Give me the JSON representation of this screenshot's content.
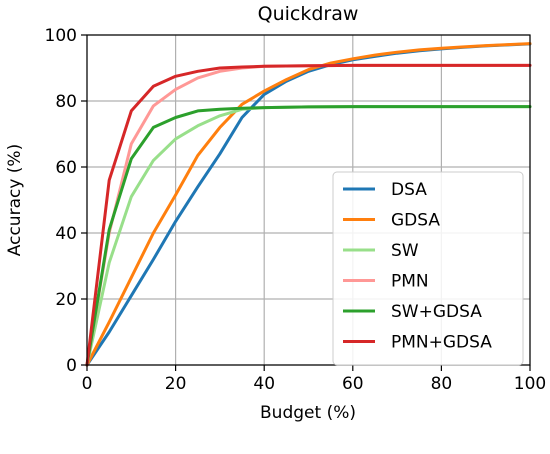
{
  "chart_data": {
    "type": "line",
    "title": "Quickdraw",
    "xlabel": "Budget (%)",
    "ylabel": "Accuracy (%)",
    "xlim": [
      0,
      100
    ],
    "ylim": [
      0,
      100
    ],
    "xticks": [
      0,
      20,
      40,
      60,
      80,
      100
    ],
    "yticks": [
      0,
      20,
      40,
      60,
      80,
      100
    ],
    "grid": true,
    "legend_position": "lower right",
    "series": [
      {
        "name": "DSA",
        "color": "#1f77b4",
        "x": [
          0,
          5,
          10,
          15,
          20,
          25,
          30,
          35,
          40,
          45,
          50,
          55,
          60,
          65,
          70,
          75,
          80,
          85,
          90,
          95,
          100
        ],
        "y": [
          0,
          10,
          21,
          32,
          43.5,
          54,
          64,
          75,
          82,
          86,
          89,
          91,
          92.5,
          93.5,
          94.5,
          95.2,
          95.8,
          96.3,
          96.7,
          97,
          97.3
        ]
      },
      {
        "name": "GDSA",
        "color": "#ff7f0e",
        "x": [
          0,
          5,
          10,
          15,
          20,
          25,
          30,
          35,
          40,
          45,
          50,
          55,
          60,
          65,
          70,
          75,
          80,
          85,
          90,
          95,
          100
        ],
        "y": [
          0,
          13,
          26.5,
          40,
          51.5,
          63.5,
          72,
          79,
          83,
          86.5,
          89.5,
          91.5,
          92.8,
          93.9,
          94.8,
          95.5,
          96,
          96.4,
          96.8,
          97.1,
          97.4
        ]
      },
      {
        "name": "SW",
        "color": "#98df8a",
        "x": [
          0,
          5,
          10,
          15,
          20,
          25,
          30,
          35,
          40,
          50,
          60,
          70,
          80,
          90,
          100
        ],
        "y": [
          0,
          31,
          51,
          62,
          68.5,
          72.5,
          75.5,
          77.5,
          78,
          78.2,
          78.3,
          78.3,
          78.3,
          78.3,
          78.3
        ]
      },
      {
        "name": "PMN",
        "color": "#ff9896",
        "x": [
          0,
          5,
          10,
          15,
          20,
          25,
          30,
          35,
          40,
          50,
          60,
          70,
          80,
          90,
          100
        ],
        "y": [
          0,
          40,
          67,
          78.5,
          83.5,
          87,
          89,
          90,
          90.5,
          90.7,
          90.8,
          90.8,
          90.8,
          90.8,
          90.8
        ]
      },
      {
        "name": "SW+GDSA",
        "color": "#2ca02c",
        "x": [
          0,
          5,
          10,
          15,
          20,
          25,
          30,
          35,
          40,
          50,
          60,
          70,
          80,
          90,
          100
        ],
        "y": [
          0,
          41,
          62.5,
          72,
          75,
          77,
          77.5,
          77.8,
          78,
          78.2,
          78.3,
          78.3,
          78.3,
          78.3,
          78.3
        ]
      },
      {
        "name": "PMN+GDSA",
        "color": "#d62728",
        "x": [
          0,
          5,
          10,
          15,
          20,
          25,
          30,
          35,
          40,
          50,
          60,
          70,
          80,
          90,
          100
        ],
        "y": [
          0,
          56,
          77,
          84.5,
          87.5,
          89,
          90,
          90.3,
          90.5,
          90.7,
          90.8,
          90.8,
          90.8,
          90.8,
          90.8
        ]
      }
    ]
  }
}
